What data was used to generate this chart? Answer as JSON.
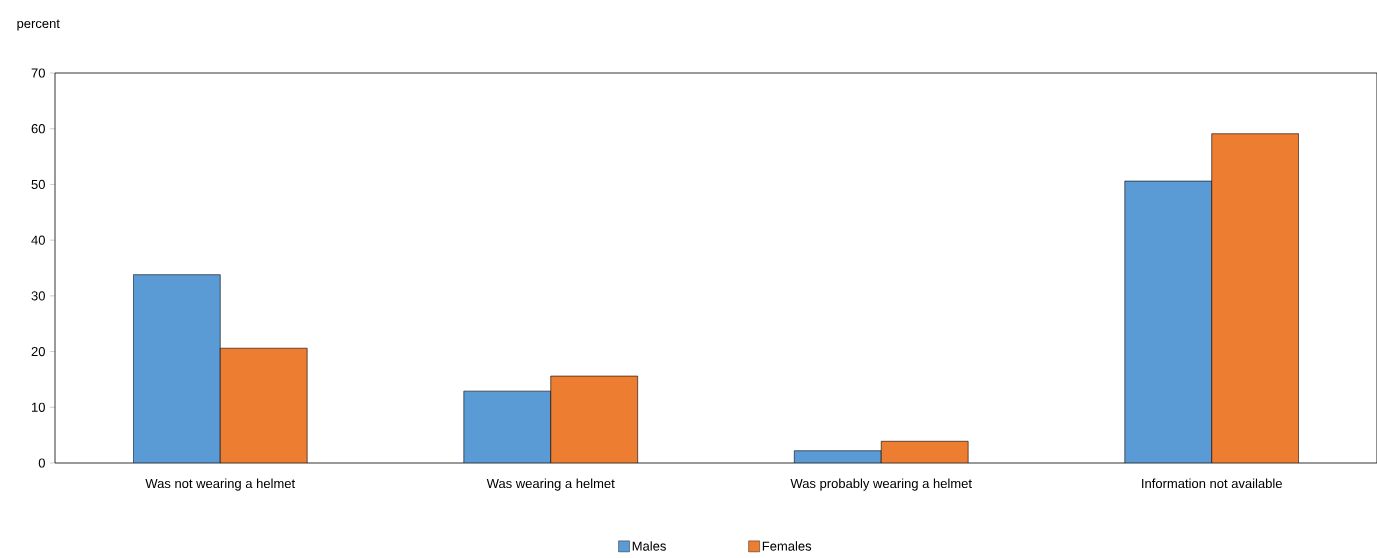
{
  "chart_data": {
    "type": "bar",
    "ylabel": "percent",
    "categories": [
      "Was not wearing a helmet",
      "Was wearing a helmet",
      "Was probably wearing a helmet",
      "Information not available"
    ],
    "series": [
      {
        "name": "Males",
        "color": "#5b9bd5",
        "values": [
          33.8,
          12.9,
          2.2,
          50.6
        ]
      },
      {
        "name": "Females",
        "color": "#ed7d31",
        "values": [
          20.6,
          15.6,
          3.9,
          59.1
        ]
      }
    ],
    "ylim": [
      0,
      70
    ],
    "yticks": [
      0,
      10,
      20,
      30,
      40,
      50,
      60,
      70
    ],
    "grid": false,
    "legend": "bottom"
  }
}
